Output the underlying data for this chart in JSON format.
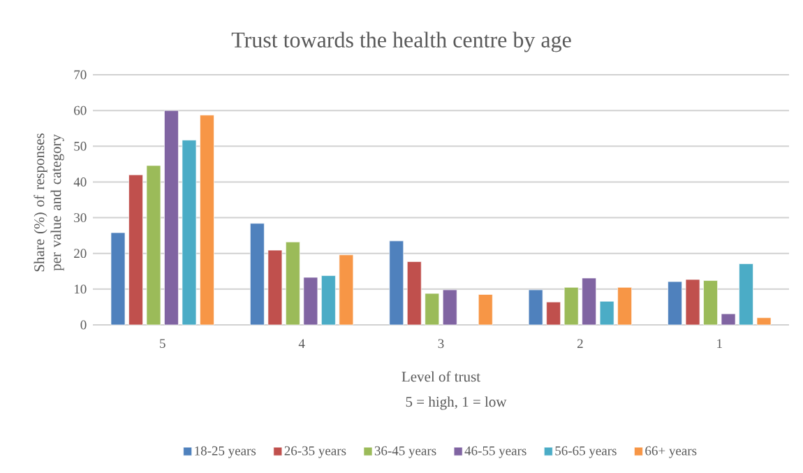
{
  "chart_data": {
    "type": "bar",
    "title": "Trust towards the health centre by age",
    "xlabel": "Level of trust",
    "ylabel": "Share (%) of responses per value and category",
    "annotations": [
      "5 = high, 1 = low"
    ],
    "categories": [
      "5",
      "4",
      "3",
      "2",
      "1"
    ],
    "series": [
      {
        "name": "18-25 years",
        "color": "#4f81bd",
        "values": [
          25.8,
          28.4,
          23.5,
          9.8,
          12.1
        ]
      },
      {
        "name": "26-35 years",
        "color": "#c0504d",
        "values": [
          42,
          20.9,
          17.7,
          6.4,
          12.7
        ]
      },
      {
        "name": "36-45 years",
        "color": "#9bbb59",
        "values": [
          44.6,
          23.2,
          8.8,
          10.5,
          12.4
        ]
      },
      {
        "name": "46-55 years",
        "color": "#8064a2",
        "values": [
          60,
          13.3,
          9.8,
          13.1,
          3.1
        ]
      },
      {
        "name": "56-65 years",
        "color": "#4bacc6",
        "values": [
          51.7,
          13.8,
          null,
          6.6,
          17.1
        ]
      },
      {
        "name": "66+ years",
        "color": "#f79646",
        "values": [
          58.7,
          19.6,
          8.5,
          10.5,
          2.0
        ]
      }
    ],
    "ylim": [
      0,
      70
    ],
    "yticks": [
      0,
      10,
      20,
      30,
      40,
      50,
      60,
      70
    ],
    "grid": "y",
    "legend": "bottom"
  }
}
